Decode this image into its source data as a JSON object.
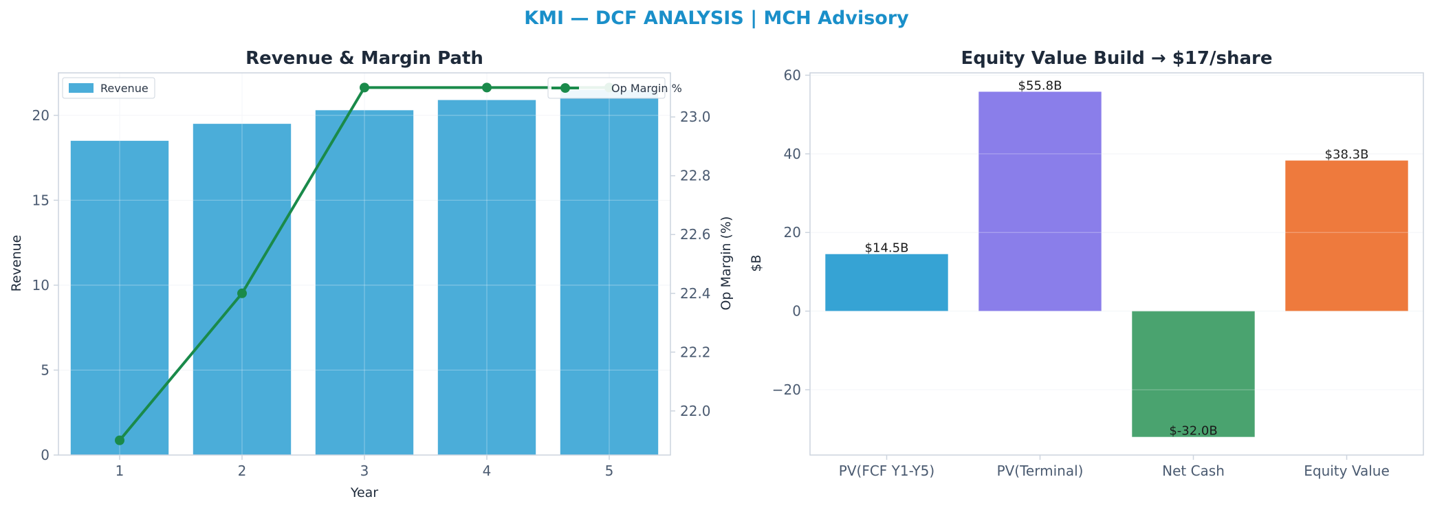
{
  "suptitle": "KMI — DCF ANALYSIS | MCH Advisory",
  "colors": {
    "accent": "#1a8fc9",
    "title": "#1e2a3a",
    "tick": "#4a5a70",
    "spine": "#ccd4de",
    "grid": "#eef1f5",
    "revenue": "#4badd9",
    "margin": "#1a8a4a",
    "pv_fcf": "#36a3d4",
    "pv_terminal": "#8a7eea",
    "net_cash": "#4aa36f",
    "equity_value": "#ee7a3d"
  },
  "chart_data": [
    {
      "type": "bar",
      "title": "Revenue & Margin Path",
      "xlabel": "Year",
      "ylabel": "Revenue",
      "y2label": "Op Margin (%)",
      "categories": [
        "1",
        "2",
        "3",
        "4",
        "5"
      ],
      "series": [
        {
          "name": "Revenue",
          "type": "bar",
          "axis": "left",
          "values": [
            18.5,
            19.5,
            20.3,
            20.9,
            21.5
          ]
        },
        {
          "name": "Op Margin %",
          "type": "line",
          "axis": "right",
          "values": [
            21.9,
            22.4,
            23.1,
            23.1,
            23.1
          ]
        }
      ],
      "ylim": [
        0,
        22.5
      ],
      "y2lim": [
        21.85,
        23.15
      ],
      "yticks": [
        0,
        5,
        10,
        15,
        20
      ],
      "y2ticks": [
        22.0,
        22.2,
        22.4,
        22.6,
        22.8,
        23.0
      ],
      "grid": true,
      "legend": [
        "top-left",
        "top-right"
      ]
    },
    {
      "type": "bar",
      "title": "Equity Value Build → $17/share",
      "xlabel": "",
      "ylabel": "$B",
      "categories": [
        "PV(FCF Y1-Y5)",
        "PV(Terminal)",
        "Net Cash",
        "Equity Value"
      ],
      "values": [
        14.5,
        55.8,
        -32.0,
        38.3
      ],
      "data_labels": [
        "$14.5B",
        "$55.8B",
        "$-32.0B",
        "$38.3B"
      ],
      "ylim": [
        -36.6,
        60.6
      ],
      "yticks": [
        -20,
        0,
        20,
        40,
        60
      ],
      "grid": true
    }
  ]
}
